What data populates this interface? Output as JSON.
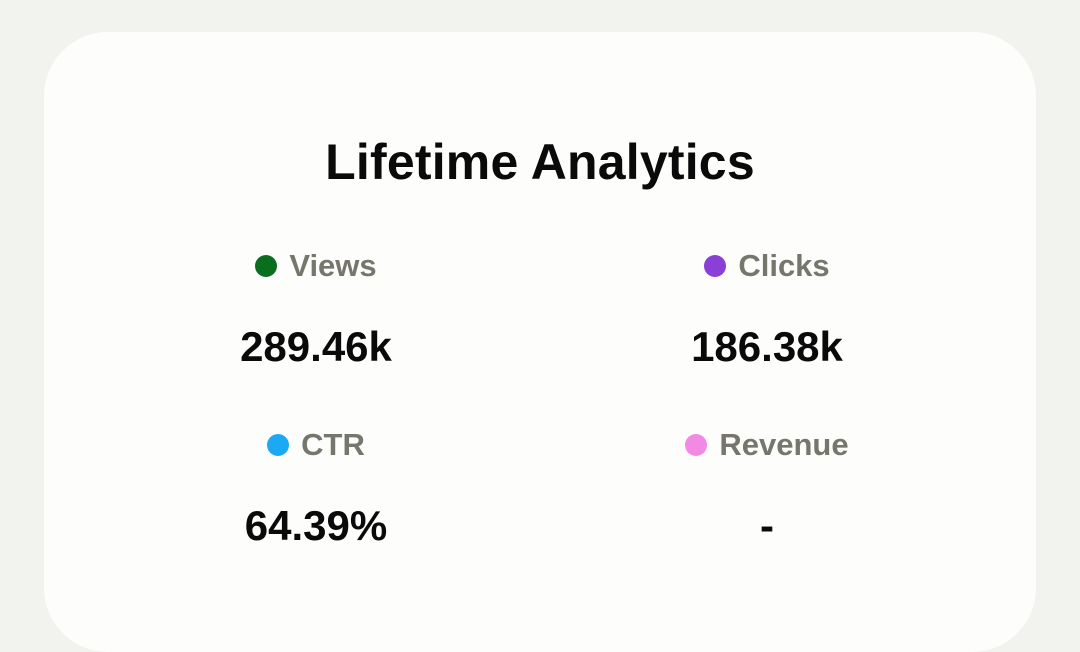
{
  "card": {
    "title": "Lifetime Analytics"
  },
  "metrics": [
    {
      "label": "Views",
      "value": "289.46k",
      "dot_color": "#0b6e1f",
      "icon": "green-dot-icon"
    },
    {
      "label": "Clicks",
      "value": "186.38k",
      "dot_color": "#8a3fd6",
      "icon": "purple-dot-icon"
    },
    {
      "label": "CTR",
      "value": "64.39%",
      "dot_color": "#1aa9f2",
      "icon": "blue-dot-icon"
    },
    {
      "label": "Revenue",
      "value": "-",
      "dot_color": "#f28ae4",
      "icon": "pink-dot-icon"
    }
  ]
}
